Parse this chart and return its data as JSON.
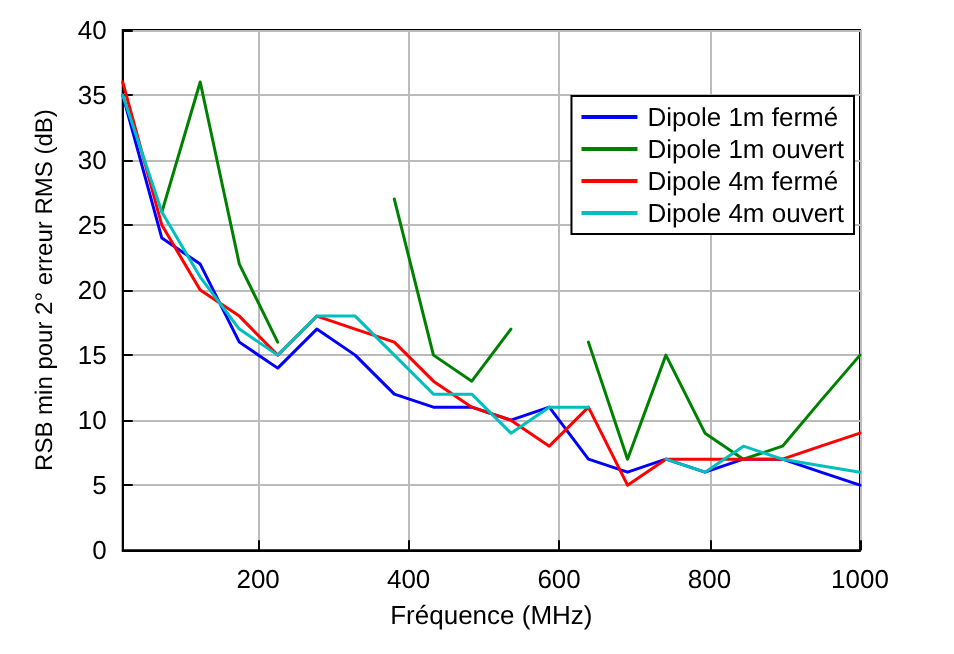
{
  "chart_data": {
    "type": "line",
    "xlabel": "Fréquence (MHz)",
    "ylabel": "RSB min pour 2° erreur RMS (dB)",
    "x": [
      20,
      72,
      123,
      175,
      226,
      278,
      329,
      381,
      433,
      484,
      536,
      587,
      639,
      691,
      742,
      794,
      845,
      897,
      948,
      1000
    ],
    "series": [
      {
        "name": "Dipole 1m fermé",
        "color": "#0000ff",
        "values": [
          35,
          24,
          22,
          16,
          14,
          17,
          15,
          12,
          11,
          11,
          10,
          11,
          7,
          6,
          7,
          6,
          7,
          7,
          6,
          5
        ]
      },
      {
        "name": "Dipole 1m ouvert",
        "color": "#008000",
        "values": [
          null,
          26,
          36,
          22,
          16,
          null,
          null,
          27,
          15,
          13,
          17,
          null,
          16,
          7,
          15,
          9,
          7,
          8,
          11.5,
          15
        ]
      },
      {
        "name": "Dipole 4m fermé",
        "color": "#ff0000",
        "values": [
          36,
          25,
          20,
          18,
          15,
          18,
          17,
          16,
          13,
          11,
          10,
          8,
          11,
          5,
          7,
          7,
          7,
          7,
          8,
          9
        ]
      },
      {
        "name": "Dipole 4m ouvert",
        "color": "#00bfbf",
        "values": [
          35,
          26,
          21,
          17,
          15,
          18,
          18,
          15,
          12,
          12,
          9,
          11,
          11,
          null,
          7,
          6,
          8,
          7,
          6.5,
          6
        ]
      }
    ],
    "xlim": [
      20,
      1000
    ],
    "xticks": [
      200,
      400,
      600,
      800,
      1000
    ],
    "ylim": [
      0,
      40
    ],
    "yticks": [
      0,
      5,
      10,
      15,
      20,
      25,
      30,
      35,
      40
    ],
    "grid": true,
    "legend": "top right",
    "marker": "none",
    "line_style": "solid"
  }
}
